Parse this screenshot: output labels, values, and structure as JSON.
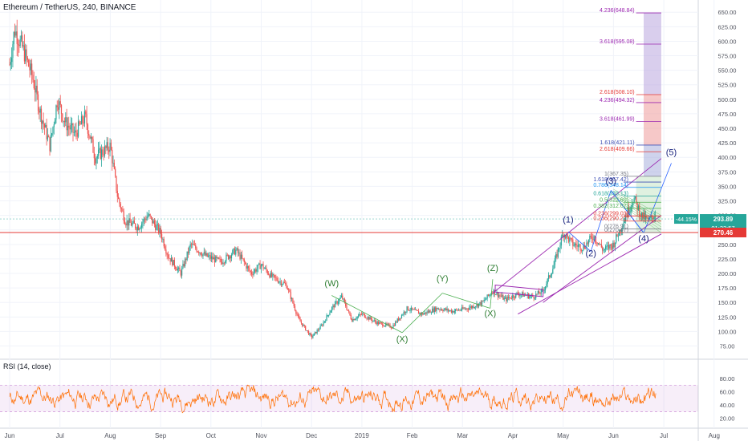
{
  "chart_data": {
    "type": "candlestick",
    "title": "Ethereum / TetherUS, 240, BINANCE",
    "price_axis": {
      "ticks": [
        650,
        625,
        600,
        575,
        550,
        525,
        500,
        475,
        450,
        425,
        400,
        375,
        350,
        325,
        300,
        275,
        250,
        225,
        200,
        175,
        150,
        125,
        100,
        75
      ],
      "tick_labels": [
        "650.00",
        "625.00",
        "600.00",
        "575.00",
        "550.00",
        "525.00",
        "500.00",
        "475.00",
        "450.00",
        "425.00",
        "400.00",
        "375.00",
        "350.00",
        "325.00",
        "300.00",
        "275.00",
        "250.00",
        "225.00",
        "200.00",
        "175.00",
        "150.00",
        "125.00",
        "100.00",
        "75.00"
      ],
      "range": [
        55,
        660
      ]
    },
    "time_axis": {
      "labels": [
        "Jun",
        "Jul",
        "Aug",
        "Sep",
        "Oct",
        "Nov",
        "Dec",
        "2019",
        "Feb",
        "Mar",
        "Apr",
        "May",
        "Jun",
        "Jul",
        "Aug"
      ],
      "positions": [
        0,
        1,
        2,
        3,
        4,
        5,
        6,
        7,
        8,
        9,
        10,
        11,
        12,
        13,
        14
      ]
    },
    "price_path": [
      [
        0,
        560
      ],
      [
        0.1,
        620
      ],
      [
        0.25,
        590
      ],
      [
        0.45,
        540
      ],
      [
        0.6,
        480
      ],
      [
        0.8,
        420
      ],
      [
        0.95,
        500
      ],
      [
        1.1,
        460
      ],
      [
        1.3,
        440
      ],
      [
        1.5,
        470
      ],
      [
        1.7,
        400
      ],
      [
        2.0,
        420
      ],
      [
        2.15,
        330
      ],
      [
        2.3,
        290
      ],
      [
        2.55,
        280
      ],
      [
        2.75,
        300
      ],
      [
        3.0,
        270
      ],
      [
        3.15,
        230
      ],
      [
        3.4,
        200
      ],
      [
        3.6,
        250
      ],
      [
        3.9,
        230
      ],
      [
        4.2,
        220
      ],
      [
        4.5,
        240
      ],
      [
        4.8,
        200
      ],
      [
        5.0,
        215
      ],
      [
        5.2,
        195
      ],
      [
        5.5,
        180
      ],
      [
        5.75,
        120
      ],
      [
        6.0,
        90
      ],
      [
        6.2,
        110
      ],
      [
        6.4,
        140
      ],
      [
        6.6,
        160
      ],
      [
        6.8,
        120
      ],
      [
        7.0,
        130
      ],
      [
        7.3,
        115
      ],
      [
        7.6,
        108
      ],
      [
        7.9,
        140
      ],
      [
        8.2,
        130
      ],
      [
        8.5,
        140
      ],
      [
        8.8,
        135
      ],
      [
        9.1,
        140
      ],
      [
        9.4,
        150
      ],
      [
        9.6,
        170
      ],
      [
        9.85,
        155
      ],
      [
        10.1,
        165
      ],
      [
        10.4,
        160
      ],
      [
        10.6,
        170
      ],
      [
        10.8,
        210
      ],
      [
        11.0,
        270
      ],
      [
        11.2,
        250
      ],
      [
        11.4,
        245
      ],
      [
        11.6,
        265
      ],
      [
        11.8,
        240
      ],
      [
        12.0,
        250
      ],
      [
        12.2,
        290
      ],
      [
        12.4,
        330
      ],
      [
        12.55,
        300
      ],
      [
        12.7,
        290
      ],
      [
        12.85,
        305
      ]
    ],
    "current_price": "293.89",
    "current_change": "-44.15%",
    "countdown": "01:23:57",
    "horizontal_line": "270.46",
    "wave_labels": [
      {
        "text": "(W)",
        "t": 6.4,
        "p": 178
      },
      {
        "text": "(X)",
        "t": 7.8,
        "p": 82
      },
      {
        "text": "(Y)",
        "t": 8.6,
        "p": 186
      },
      {
        "text": "(Z)",
        "t": 9.6,
        "p": 204
      },
      {
        "text": "(X)",
        "t": 9.55,
        "p": 126
      },
      {
        "text": "(1)",
        "t": 11.1,
        "p": 288
      },
      {
        "text": "(2)",
        "t": 11.55,
        "p": 230
      },
      {
        "text": "(3)",
        "t": 11.95,
        "p": 354
      },
      {
        "text": "(4)",
        "t": 12.6,
        "p": 255
      },
      {
        "text": "(5)",
        "t": 13.15,
        "p": 404
      }
    ],
    "fib_levels": [
      {
        "text": "4.236(648.84)",
        "p": 648.84,
        "color": "#9c27b0"
      },
      {
        "text": "3.618(595.08)",
        "p": 595.08,
        "color": "#9c27b0"
      },
      {
        "text": "2.618(508.10)",
        "p": 508.1,
        "color": "#e53935"
      },
      {
        "text": "4.236(494.32)",
        "p": 494.32,
        "color": "#9c27b0"
      },
      {
        "text": "3.618(461.99)",
        "p": 461.99,
        "color": "#9c27b0"
      },
      {
        "text": "1.618(421.11)",
        "p": 421.11,
        "color": "#3f51b5"
      },
      {
        "text": "2.618(409.66)",
        "p": 409.66,
        "color": "#e53935"
      },
      {
        "text": "1(367.35)",
        "p": 367.35,
        "color": "#787b86"
      },
      {
        "text": "1.618(357.42)",
        "p": 357.42,
        "color": "#3f51b5"
      },
      {
        "text": "0.786(348.14)",
        "p": 348.14,
        "color": "#2196f3"
      },
      {
        "text": "0.618(333.13)",
        "p": 333.13,
        "color": "#26a69a"
      },
      {
        "text": "0.5(322.60)",
        "p": 322.6,
        "color": "#4caf50"
      },
      {
        "text": "0.382(312.07)",
        "p": 312.07,
        "color": "#4caf50"
      },
      {
        "text": "0.236(299.03)",
        "p": 299.03,
        "color": "#e53935"
      },
      {
        "text": "0.236(290.21)",
        "p": 290.21,
        "color": "#e53935"
      },
      {
        "text": "0(276.91)",
        "p": 276.91,
        "color": "#787b86"
      },
      {
        "text": "0(270.47)",
        "p": 270.47,
        "color": "#787b86"
      }
    ],
    "rsi": {
      "title": "RSI (14, close)",
      "ticks": [
        80,
        60,
        40,
        20
      ],
      "tick_labels": [
        "80.00",
        "60.00",
        "40.00",
        "20.00"
      ],
      "upper_band": 70,
      "lower_band": 30,
      "range": [
        10,
        92
      ]
    }
  }
}
